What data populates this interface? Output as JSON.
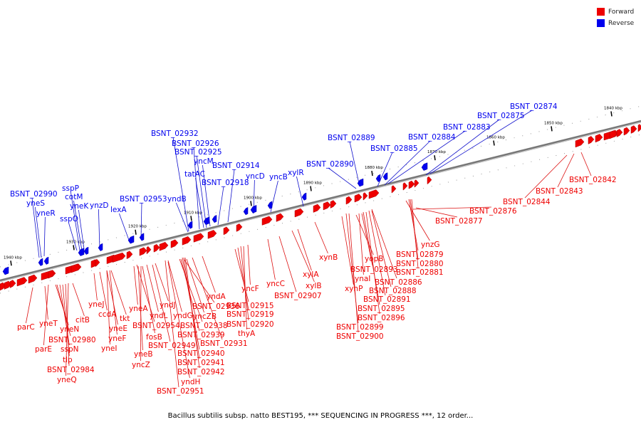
{
  "colors": {
    "forward": "#ee0000",
    "reverse": "#0000ee",
    "axis": "#777777",
    "leader_forward": "#dd1111",
    "leader_reverse": "#1111cc"
  },
  "legend": [
    {
      "label": "Forward",
      "color": "#ee0000"
    },
    {
      "label": "Reverse",
      "color": "#0000ee"
    }
  ],
  "caption": "Bacillus subtilis subsp. natto BEST195, *** SEQUENCING IN PROGRESS ***, 12 order...",
  "ticks": [
    "1940 kbp",
    "1930 kbp",
    "1920 kbp",
    "1910 kbp",
    "1900 kbp",
    "1890 kbp",
    "1880 kbp",
    "1870 kbp",
    "1860 kbp",
    "1850 kbp",
    "1840 kbp"
  ],
  "reverse_labels": [
    "BSNT_02990",
    "yneS",
    "yneR",
    "sspP",
    "cotM",
    "yneK",
    "sspO",
    "ynzD",
    "lexA",
    "BSNT_02953",
    "BSNT_02932",
    "BSNT_02926",
    "BSNT_02925",
    "yncM",
    "tatAC",
    "BSNT_02914",
    "yndB",
    "BSNT_02918",
    "yncD",
    "yncB",
    "xylR",
    "BSNT_02889",
    "BSNT_02890",
    "BSNT_02885",
    "BSNT_02884",
    "BSNT_02883",
    "BSNT_02875",
    "BSNT_02874"
  ],
  "forward_labels": [
    "parC",
    "yneT",
    "parE",
    "yneN",
    "BSNT_02980",
    "sspN",
    "tlp",
    "BSNT_02984",
    "yneQ",
    "citB",
    "yneJ",
    "ccdA",
    "tkt",
    "yneE",
    "yneF",
    "yneI",
    "yneA",
    "yndL",
    "fosB",
    "yneB",
    "yndJ",
    "BSNT_02954",
    "yndG",
    "BSNT_02936",
    "BSNT_02949",
    "yncZ",
    "yndH",
    "BSNT_02951",
    "yncZB",
    "BSNT_02938",
    "BSNT_02939",
    "BSNT_02940",
    "BSNT_02941",
    "BSNT_02942",
    "yndA",
    "BSNT_02931",
    "BSNT_02915",
    "BSNT_02919",
    "BSNT_02920",
    "thyA",
    "yncF",
    "yncC",
    "BSNT_02907",
    "xylB",
    "xylA",
    "xynB",
    "xynP",
    "yopB",
    "ynaI",
    "BSNT_02893",
    "BSNT_02899",
    "BSNT_02900",
    "BSNT_02895",
    "BSNT_02896",
    "BSNT_02891",
    "BSNT_02888",
    "BSNT_02886",
    "ynzG",
    "BSNT_02879",
    "BSNT_02880",
    "BSNT_02881",
    "BSNT_02876",
    "BSNT_02877",
    "BSNT_02844",
    "BSNT_02843",
    "BSNT_02842"
  ]
}
